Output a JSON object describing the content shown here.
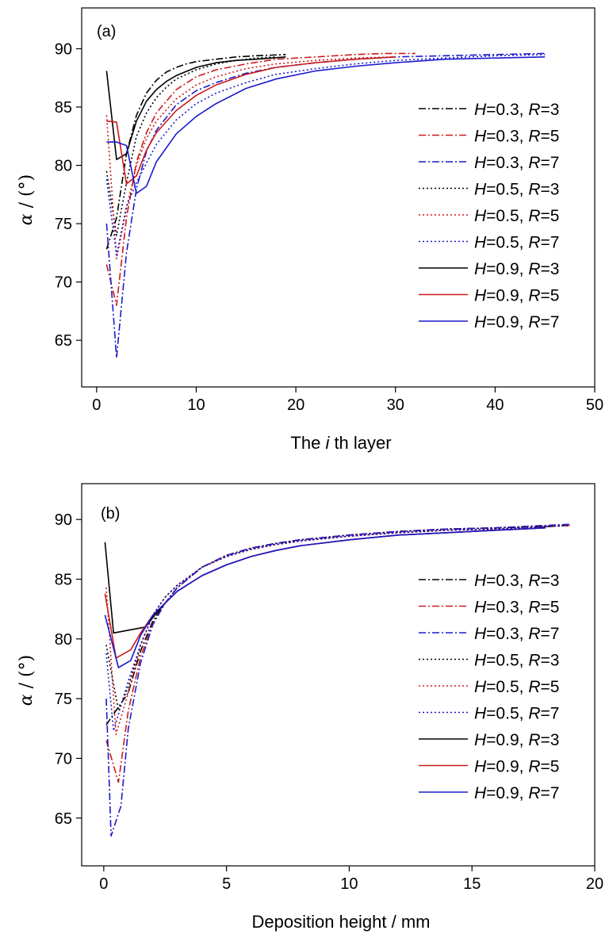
{
  "colors": {
    "black": "#000000",
    "red": "#cc1a1a",
    "blue": "#1a1acc"
  },
  "legend_entries": [
    {
      "h_label": "H",
      "h_value": "=0.3,",
      "r_label": "R",
      "r_value": "=3",
      "style": "dashdot",
      "color": "black"
    },
    {
      "h_label": "H",
      "h_value": "=0.3,",
      "r_label": "R",
      "r_value": "=5",
      "style": "dashdot",
      "color": "red"
    },
    {
      "h_label": "H",
      "h_value": "=0.3,",
      "r_label": "R",
      "r_value": "=7",
      "style": "dashdot",
      "color": "blue"
    },
    {
      "h_label": "H",
      "h_value": "=0.5,",
      "r_label": "R",
      "r_value": "=3",
      "style": "dotted",
      "color": "black"
    },
    {
      "h_label": "H",
      "h_value": "=0.5,",
      "r_label": "R",
      "r_value": "=5",
      "style": "dotted",
      "color": "red"
    },
    {
      "h_label": "H",
      "h_value": "=0.5,",
      "r_label": "R",
      "r_value": "=7",
      "style": "dotted",
      "color": "blue"
    },
    {
      "h_label": "H",
      "h_value": "=0.9,",
      "r_label": "R",
      "r_value": "=3",
      "style": "solid",
      "color": "black"
    },
    {
      "h_label": "H",
      "h_value": "=0.9,",
      "r_label": "R",
      "r_value": "=5",
      "style": "solid",
      "color": "red"
    },
    {
      "h_label": "H",
      "h_value": "=0.9,",
      "r_label": "R",
      "r_value": "=7",
      "style": "solid",
      "color": "blue"
    }
  ],
  "chart_data": [
    {
      "type": "line",
      "panel_label": "(a)",
      "xlabel": {
        "pre": "The ",
        "italic": "i",
        "post": " th layer"
      },
      "ylabel": {
        "symbol": "α",
        "unit": " / (°)"
      },
      "xlim": [
        -1.5,
        50
      ],
      "ylim": [
        61,
        93.5
      ],
      "xticks": [
        "0",
        "10",
        "20",
        "30",
        "40",
        "50"
      ],
      "yticks": [
        "65",
        "70",
        "75",
        "80",
        "85",
        "90"
      ],
      "legend_position": "right",
      "series": [
        {
          "name": "H=0.3, R=3",
          "style": "dashdot",
          "color": "black",
          "x": [
            1,
            2,
            3,
            4,
            5,
            6,
            7,
            8,
            9,
            10,
            12,
            14,
            16,
            19
          ],
          "y": [
            72.8,
            75.5,
            81,
            84.3,
            86.2,
            87.3,
            88,
            88.4,
            88.7,
            88.9,
            89.1,
            89.3,
            89.4,
            89.5
          ]
        },
        {
          "name": "H=0.3, R=5",
          "style": "dashdot",
          "color": "red",
          "x": [
            1,
            2,
            3,
            4,
            5,
            6,
            8,
            10,
            12,
            15,
            18,
            22,
            26,
            29,
            32
          ],
          "y": [
            71.5,
            68,
            75.5,
            80.3,
            82.8,
            84.5,
            86.5,
            87.6,
            88.2,
            88.7,
            89.1,
            89.3,
            89.5,
            89.6,
            89.6
          ]
        },
        {
          "name": "H=0.3, R=7",
          "style": "dashdot",
          "color": "blue",
          "x": [
            1,
            2,
            3,
            4,
            5,
            6,
            8,
            10,
            12,
            15,
            18,
            22,
            26,
            30,
            35,
            40,
            45
          ],
          "y": [
            75,
            63.5,
            72.5,
            78,
            81.2,
            83,
            85.2,
            86.4,
            87.1,
            87.9,
            88.4,
            88.8,
            89.1,
            89.3,
            89.4,
            89.5,
            89.6
          ]
        },
        {
          "name": "H=0.5, R=3",
          "style": "dotted",
          "color": "black",
          "x": [
            1,
            2,
            3,
            4,
            5,
            6,
            7,
            8,
            10,
            12,
            14,
            16,
            18
          ],
          "y": [
            79.5,
            74,
            78.5,
            82.5,
            84.5,
            85.8,
            86.7,
            87.4,
            88.2,
            88.7,
            89,
            89.2,
            89.3
          ]
        },
        {
          "name": "H=0.5, R=5",
          "style": "dotted",
          "color": "red",
          "x": [
            1,
            2,
            3,
            4,
            5,
            6,
            8,
            10,
            12,
            15,
            18,
            22,
            26,
            30
          ],
          "y": [
            84.3,
            72,
            76.3,
            80,
            82.3,
            83.8,
            85.7,
            86.9,
            87.6,
            88.3,
            88.7,
            89,
            89.2,
            89.3
          ]
        },
        {
          "name": "H=0.5, R=7",
          "style": "dotted",
          "color": "blue",
          "x": [
            1,
            2,
            3,
            4,
            5,
            6,
            8,
            10,
            12,
            15,
            18,
            22,
            26,
            30,
            35,
            40,
            45
          ],
          "y": [
            78.8,
            72.3,
            76.5,
            78.5,
            80.2,
            81.8,
            83.9,
            85.3,
            86.2,
            87.1,
            87.8,
            88.3,
            88.7,
            89,
            89.2,
            89.4,
            89.5
          ]
        },
        {
          "name": "H=0.9, R=3",
          "style": "solid",
          "color": "black",
          "x": [
            1,
            2,
            3,
            4,
            5,
            6,
            7,
            8,
            10,
            12,
            14,
            16,
            19
          ],
          "y": [
            88.1,
            80.5,
            81,
            83.8,
            85.5,
            86.5,
            87.2,
            87.7,
            88.4,
            88.8,
            89,
            89.1,
            89.3
          ]
        },
        {
          "name": "H=0.9, R=5",
          "style": "solid",
          "color": "red",
          "x": [
            1,
            2,
            3,
            4,
            5,
            6,
            8,
            10,
            12,
            15,
            18,
            22,
            26,
            30
          ],
          "y": [
            83.8,
            83.7,
            78.4,
            79.1,
            81.3,
            82.8,
            84.7,
            86,
            86.9,
            87.8,
            88.4,
            88.8,
            89.1,
            89.3
          ]
        },
        {
          "name": "H=0.9, R=7",
          "style": "solid",
          "color": "blue",
          "x": [
            1,
            2,
            3,
            4,
            5,
            6,
            8,
            10,
            12,
            15,
            18,
            22,
            26,
            30,
            35,
            40,
            45
          ],
          "y": [
            82,
            82,
            81.7,
            77.6,
            78.2,
            80.3,
            82.7,
            84.2,
            85.3,
            86.6,
            87.4,
            88.1,
            88.5,
            88.8,
            89.1,
            89.2,
            89.3
          ]
        }
      ]
    },
    {
      "type": "line",
      "panel_label": "(b)",
      "xlabel": {
        "pre": "Deposition height / mm",
        "italic": "",
        "post": ""
      },
      "ylabel": {
        "symbol": "α",
        "unit": " / (°)"
      },
      "xlim": [
        -0.9,
        20
      ],
      "ylim": [
        61,
        93
      ],
      "xticks": [
        "0",
        "5",
        "10",
        "15",
        "20"
      ],
      "yticks": [
        "65",
        "70",
        "75",
        "80",
        "85",
        "90"
      ],
      "legend_position": "right",
      "series": [
        {
          "name": "H=0.3, R=3",
          "style": "dashdot",
          "color": "black",
          "x": [
            0.1,
            0.5,
            1,
            1.5,
            2,
            2.5,
            3,
            4,
            5,
            6,
            7,
            8,
            10,
            12,
            14,
            16,
            18,
            19
          ],
          "y": [
            72.8,
            74,
            75.5,
            79,
            81.5,
            83,
            84.3,
            86,
            87,
            87.6,
            88,
            88.3,
            88.7,
            89,
            89.2,
            89.3,
            89.4,
            89.5
          ]
        },
        {
          "name": "H=0.3, R=5",
          "style": "dashdot",
          "color": "red",
          "x": [
            0.1,
            0.6,
            1,
            1.5,
            2,
            2.5,
            3,
            4,
            5,
            6,
            7,
            8,
            10,
            12,
            14,
            16,
            18,
            19
          ],
          "y": [
            71.5,
            68,
            74,
            78.5,
            81.3,
            83,
            84.3,
            86,
            87,
            87.6,
            88,
            88.3,
            88.7,
            89,
            89.2,
            89.3,
            89.5,
            89.5
          ]
        },
        {
          "name": "H=0.3, R=7",
          "style": "dashdot",
          "color": "blue",
          "x": [
            0.1,
            0.3,
            0.7,
            1,
            1.5,
            2,
            2.5,
            3,
            4,
            5,
            6,
            7,
            8,
            10,
            12,
            14,
            16,
            18,
            19
          ],
          "y": [
            75,
            63.5,
            66,
            72.5,
            78,
            81.2,
            83,
            84.3,
            86,
            87,
            87.6,
            88,
            88.3,
            88.7,
            89,
            89.2,
            89.3,
            89.5,
            89.6
          ]
        },
        {
          "name": "H=0.5, R=3",
          "style": "dotted",
          "color": "black",
          "x": [
            0.1,
            0.6,
            1,
            1.5,
            2,
            2.5,
            3,
            4,
            5,
            6,
            7,
            8,
            10,
            12,
            14,
            16,
            18,
            19
          ],
          "y": [
            79.5,
            74,
            76,
            79.5,
            82,
            83.5,
            84.5,
            86,
            86.9,
            87.5,
            87.9,
            88.2,
            88.6,
            88.9,
            89.1,
            89.2,
            89.4,
            89.5
          ]
        },
        {
          "name": "H=0.5, R=5",
          "style": "dotted",
          "color": "red",
          "x": [
            0.1,
            0.5,
            1,
            1.5,
            2,
            2.5,
            3,
            4,
            5,
            6,
            7,
            8,
            10,
            12,
            14,
            16,
            18,
            19
          ],
          "y": [
            84.3,
            72,
            75.5,
            79.5,
            82,
            83.5,
            84.5,
            86,
            86.9,
            87.5,
            87.9,
            88.2,
            88.6,
            88.9,
            89.1,
            89.2,
            89.4,
            89.5
          ]
        },
        {
          "name": "H=0.5, R=7",
          "style": "dotted",
          "color": "blue",
          "x": [
            0.1,
            0.4,
            1,
            1.5,
            2,
            2.5,
            3,
            4,
            5,
            6,
            7,
            8,
            10,
            12,
            14,
            16,
            18,
            19
          ],
          "y": [
            78.8,
            72.3,
            76.5,
            79.5,
            82,
            83.5,
            84.5,
            86,
            86.9,
            87.5,
            87.9,
            88.2,
            88.6,
            88.9,
            89.1,
            89.2,
            89.4,
            89.5
          ]
        },
        {
          "name": "H=0.9, R=3",
          "style": "solid",
          "color": "black",
          "x": [
            0.05,
            0.4,
            1.7,
            2,
            2.5,
            3,
            4,
            5,
            6,
            7,
            8,
            10,
            12,
            14,
            16,
            18
          ],
          "y": [
            88.1,
            80.5,
            81,
            81.8,
            83,
            84,
            85.3,
            86.2,
            86.9,
            87.4,
            87.8,
            88.3,
            88.7,
            88.9,
            89.1,
            89.3
          ]
        },
        {
          "name": "H=0.9, R=5",
          "style": "solid",
          "color": "red",
          "x": [
            0.05,
            0.5,
            1.1,
            1.5,
            2,
            2.5,
            3,
            4,
            5,
            6,
            7,
            8,
            10,
            12,
            14,
            16,
            18
          ],
          "y": [
            83.8,
            78.4,
            79.1,
            80.5,
            82,
            83,
            84,
            85.3,
            86.2,
            86.9,
            87.4,
            87.8,
            88.3,
            88.7,
            88.9,
            89.1,
            89.3
          ]
        },
        {
          "name": "H=0.9, R=7",
          "style": "solid",
          "color": "blue",
          "x": [
            0.05,
            0.6,
            1.1,
            1.5,
            2,
            2.5,
            3,
            4,
            5,
            6,
            7,
            8,
            10,
            12,
            14,
            16,
            18
          ],
          "y": [
            82,
            77.6,
            78.2,
            80.3,
            82,
            83,
            84,
            85.3,
            86.2,
            86.9,
            87.4,
            87.8,
            88.3,
            88.7,
            88.9,
            89.1,
            89.3
          ]
        }
      ]
    }
  ]
}
